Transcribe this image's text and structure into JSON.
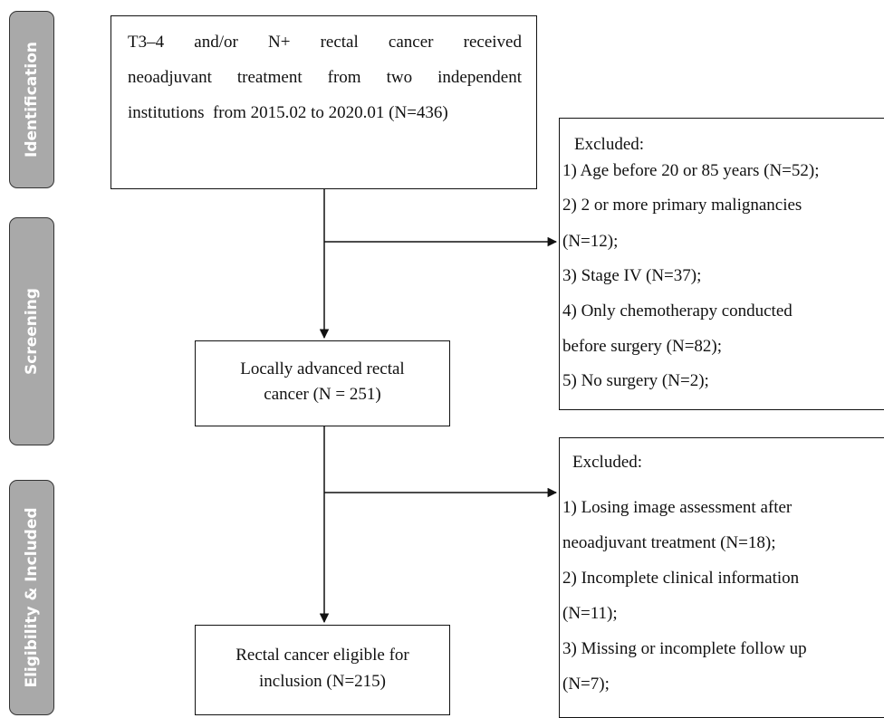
{
  "stages": [
    "Identification",
    "Screening",
    "Eligibility & Included"
  ],
  "nodes": [
    {
      "lines": [
        "T3–4 and/or N+ rectal cancer received",
        "neoadjuvant treatment from two independent",
        "institutions  from 2015.02 to 2020.01 (N=436)"
      ]
    },
    {
      "lines": [
        "Locally advanced rectal",
        "cancer (N = 251)"
      ]
    },
    {
      "lines": [
        "Rectal cancer eligible for",
        "inclusion (N=215)"
      ]
    }
  ],
  "exclusions": [
    {
      "title": "Excluded:",
      "lines": [
        "1) Age before 20 or 85 years (N=52);",
        "2) 2 or more primary malignancies",
        "(N=12);",
        "3) Stage IV (N=37);",
        "4) Only chemotherapy conducted",
        "before surgery (N=82);",
        "5) No surgery (N=2);"
      ]
    },
    {
      "title": "Excluded:",
      "lines": [
        "1) Losing image assessment after",
        "neoadjuvant treatment (N=18);",
        "2) Incomplete clinical information",
        "(N=11);",
        "3) Missing or incomplete follow up",
        "(N=7);"
      ]
    }
  ]
}
